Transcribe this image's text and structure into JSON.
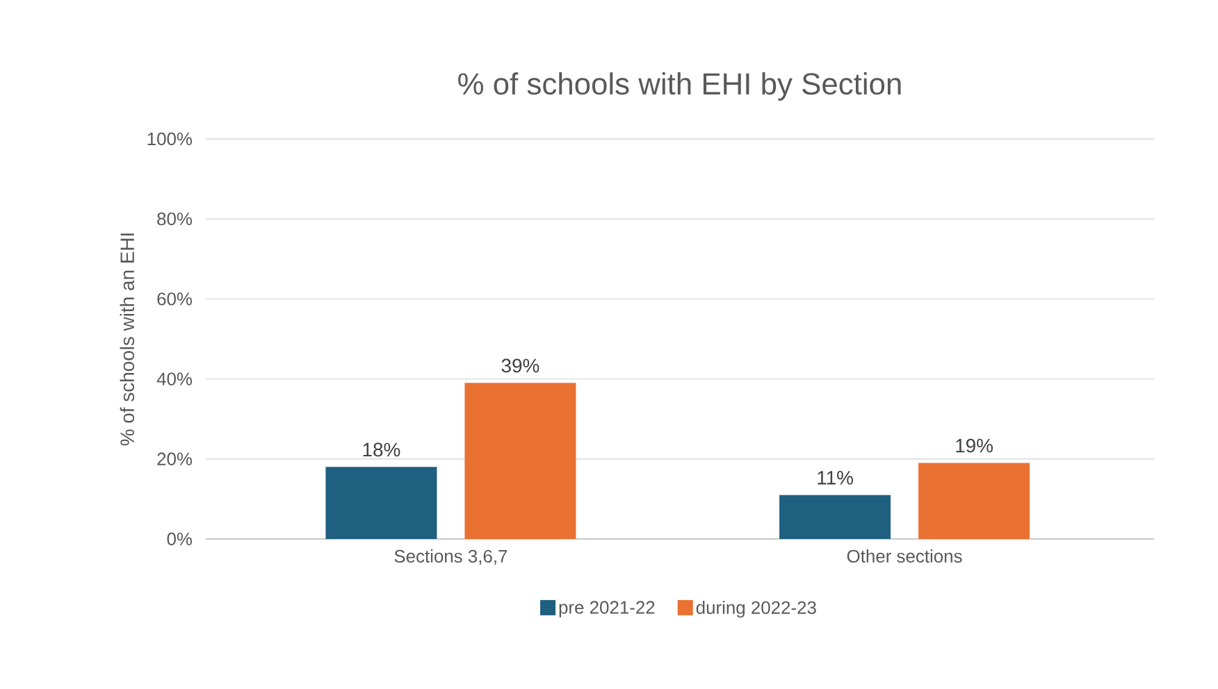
{
  "chart_data": {
    "type": "bar",
    "title": "% of schools with EHI by Section",
    "ylabel": "% of schools with an EHI",
    "categories": [
      "Sections 3,6,7",
      "Other sections"
    ],
    "series": [
      {
        "name": "pre 2021-22",
        "color": "#1f5f7f",
        "values": [
          18,
          11
        ],
        "value_labels": [
          "18%",
          "11%"
        ]
      },
      {
        "name": "during 2022-23",
        "color": "#e97132",
        "values": [
          39,
          19
        ],
        "value_labels": [
          "39%",
          "19%"
        ]
      }
    ],
    "ylim": [
      0,
      100
    ],
    "yticks": [
      {
        "value": 0,
        "label": "0%"
      },
      {
        "value": 20,
        "label": "20%"
      },
      {
        "value": 40,
        "label": "40%"
      },
      {
        "value": 60,
        "label": "60%"
      },
      {
        "value": 80,
        "label": "80%"
      },
      {
        "value": 100,
        "label": "100%"
      }
    ],
    "grid": "y",
    "legend": "bottom"
  }
}
